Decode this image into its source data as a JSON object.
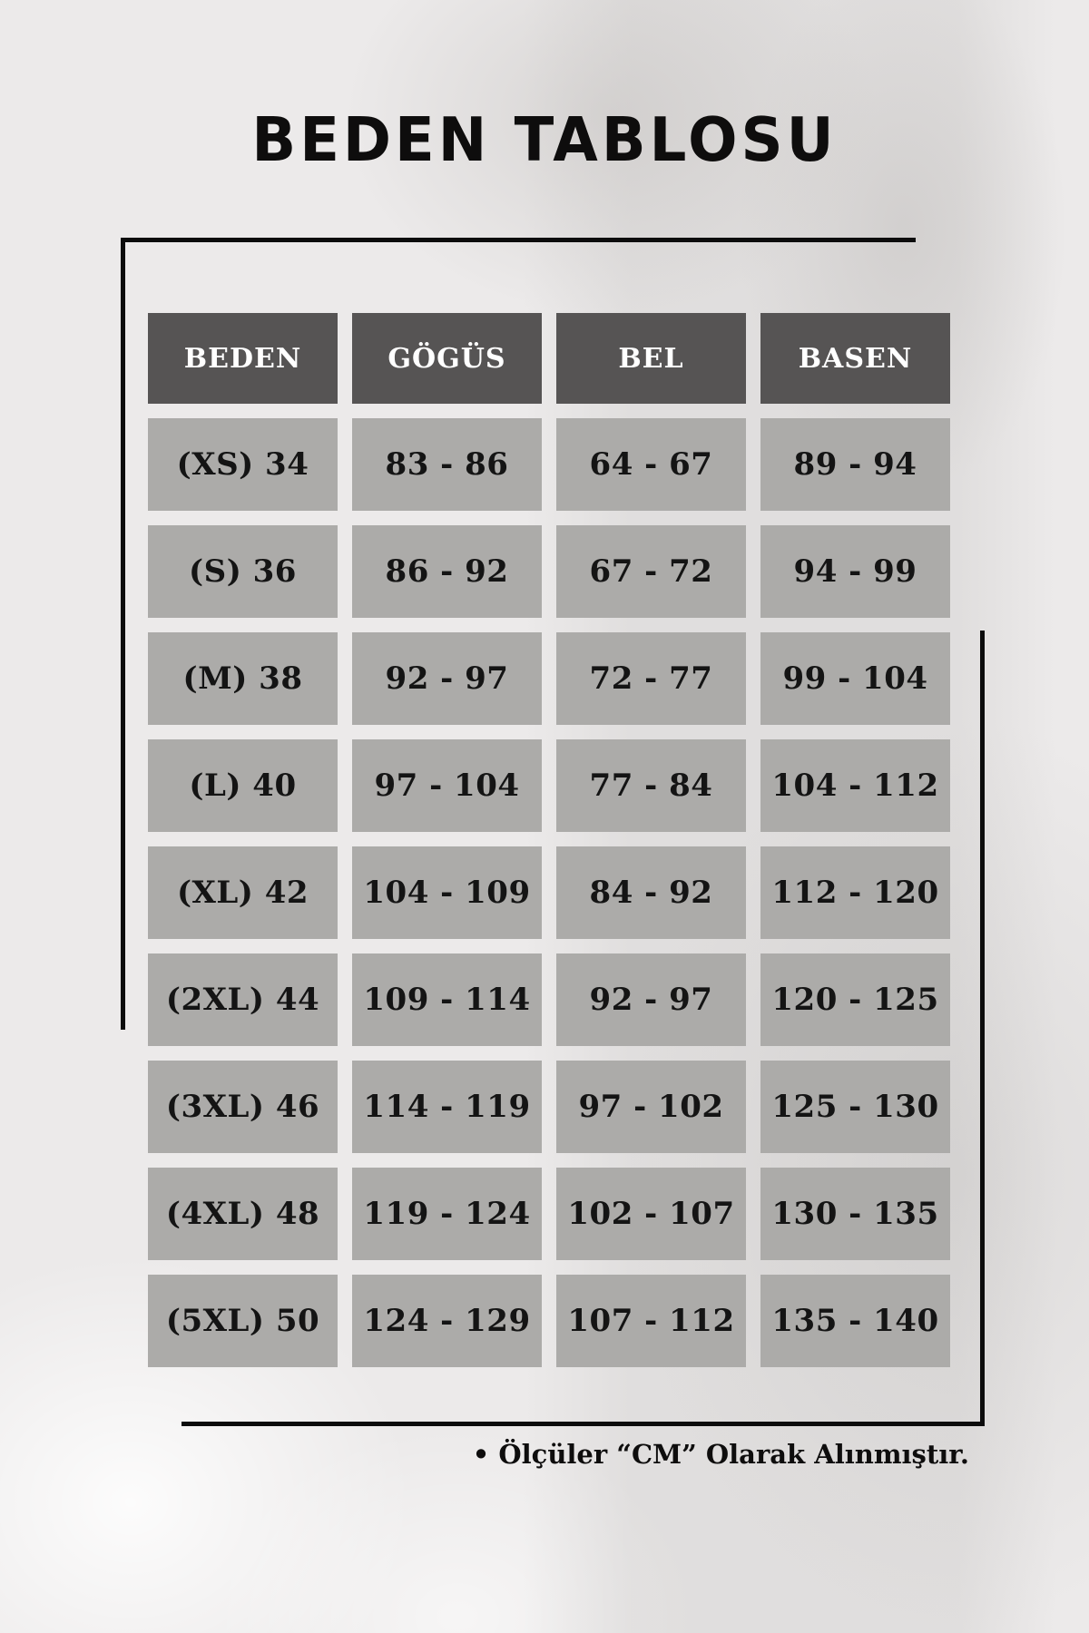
{
  "page": {
    "title": "BEDEN TABLOSU",
    "footnote": "• Ölçüler “CM” Olarak Alınmıştır."
  },
  "chart_data": {
    "type": "table",
    "title": "BEDEN TABLOSU",
    "unit_note": "Ölçüler “CM” Olarak Alınmıştır.",
    "columns": [
      "BEDEN",
      "GÖGÜS",
      "BEL",
      "BASEN"
    ],
    "rows": [
      [
        "(XS) 34",
        "83 - 86",
        "64 - 67",
        "89 - 94"
      ],
      [
        "(S) 36",
        "86 - 92",
        "67 - 72",
        "94 - 99"
      ],
      [
        "(M) 38",
        "92 - 97",
        "72 - 77",
        "99 - 104"
      ],
      [
        "(L) 40",
        "97 - 104",
        "77 - 84",
        "104 - 112"
      ],
      [
        "(XL) 42",
        "104 - 109",
        "84 - 92",
        "112 - 120"
      ],
      [
        "(2XL) 44",
        "109 - 114",
        "92 - 97",
        "120 - 125"
      ],
      [
        "(3XL) 46",
        "114 - 119",
        "97 - 102",
        "125 - 130"
      ],
      [
        "(4XL) 48",
        "119 - 124",
        "102 - 107",
        "130 - 135"
      ],
      [
        "(5XL) 50",
        "124 - 129",
        "107 - 112",
        "135 - 140"
      ]
    ],
    "colors": {
      "header_bg": "#565454",
      "header_text": "#ffffff",
      "cell_bg": "#acaba9",
      "cell_text": "#141414",
      "line": "#0c0c0c",
      "background": "#eceaea"
    }
  }
}
